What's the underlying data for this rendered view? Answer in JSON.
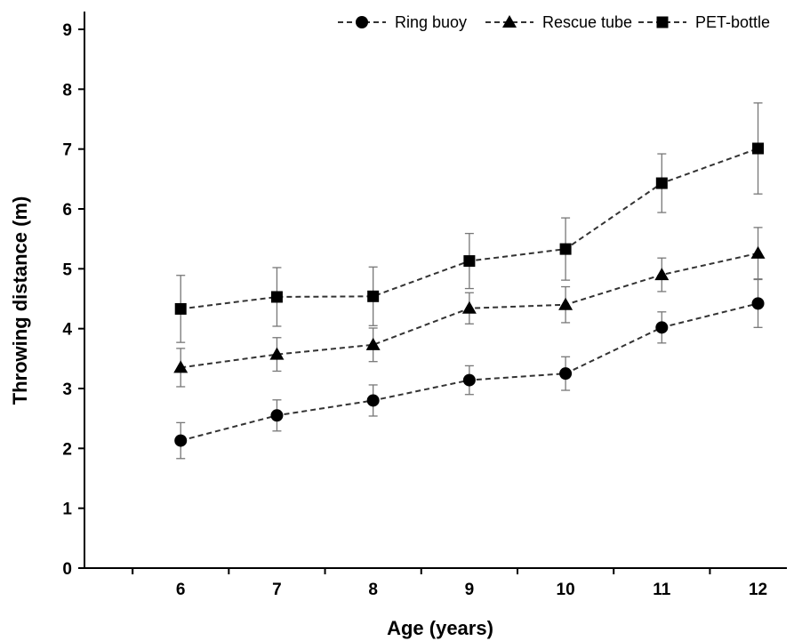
{
  "chart_data": {
    "type": "line",
    "title": "",
    "xlabel": "Age (years)",
    "ylabel": "Throwing distance (m)",
    "x": [
      6,
      7,
      8,
      9,
      10,
      11,
      12
    ],
    "xlim": [
      5,
      12.3
    ],
    "ylim": [
      0,
      9
    ],
    "yticks": [
      0,
      1,
      2,
      3,
      4,
      5,
      6,
      7,
      8,
      9
    ],
    "grid": false,
    "legend_position": "top",
    "line_style": "dashed",
    "color": "#333333",
    "series": [
      {
        "name": "Ring buoy",
        "marker": "circle",
        "values": [
          2.13,
          2.55,
          2.8,
          3.14,
          3.25,
          4.02,
          4.42
        ],
        "error": [
          0.3,
          0.26,
          0.26,
          0.24,
          0.28,
          0.26,
          0.4
        ]
      },
      {
        "name": "Rescue tube",
        "marker": "triangle",
        "values": [
          3.35,
          3.57,
          3.73,
          4.34,
          4.4,
          4.9,
          5.26
        ],
        "error": [
          0.32,
          0.28,
          0.28,
          0.26,
          0.3,
          0.28,
          0.43
        ]
      },
      {
        "name": "PET-bottle",
        "marker": "square",
        "values": [
          4.33,
          4.53,
          4.54,
          5.13,
          5.33,
          6.43,
          7.01
        ],
        "error": [
          0.56,
          0.49,
          0.49,
          0.46,
          0.52,
          0.49,
          0.76
        ]
      }
    ]
  }
}
